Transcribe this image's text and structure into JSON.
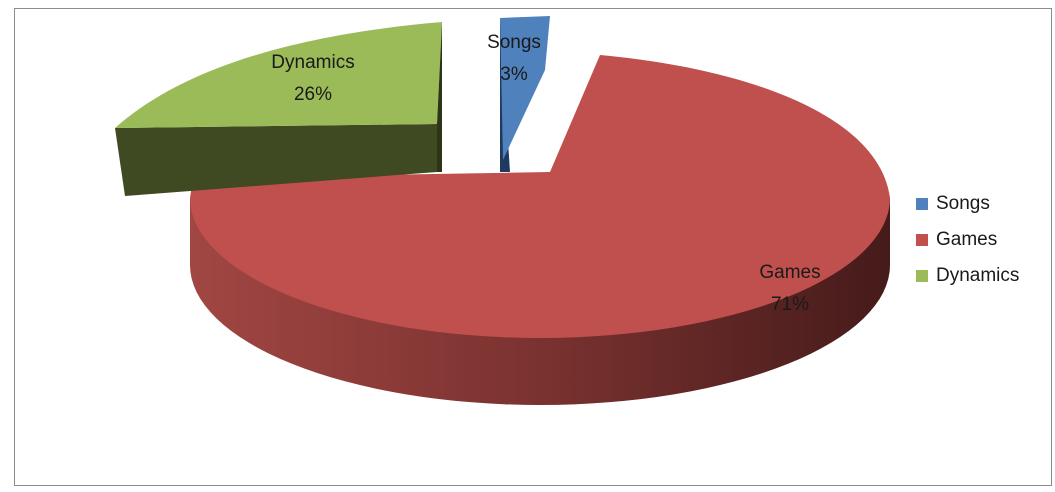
{
  "chart_data": {
    "type": "pie",
    "style": "3d-exploded",
    "slices": [
      {
        "label": "Songs",
        "value": 3,
        "percent_label": "3%",
        "color": "#4f81bd"
      },
      {
        "label": "Games",
        "value": 71,
        "percent_label": "71%",
        "color": "#c0504d"
      },
      {
        "label": "Dynamics",
        "value": 26,
        "percent_label": "26%",
        "color": "#9bbb59"
      }
    ],
    "legend": {
      "position": "right",
      "entries": [
        "Songs",
        "Games",
        "Dynamics"
      ]
    }
  }
}
